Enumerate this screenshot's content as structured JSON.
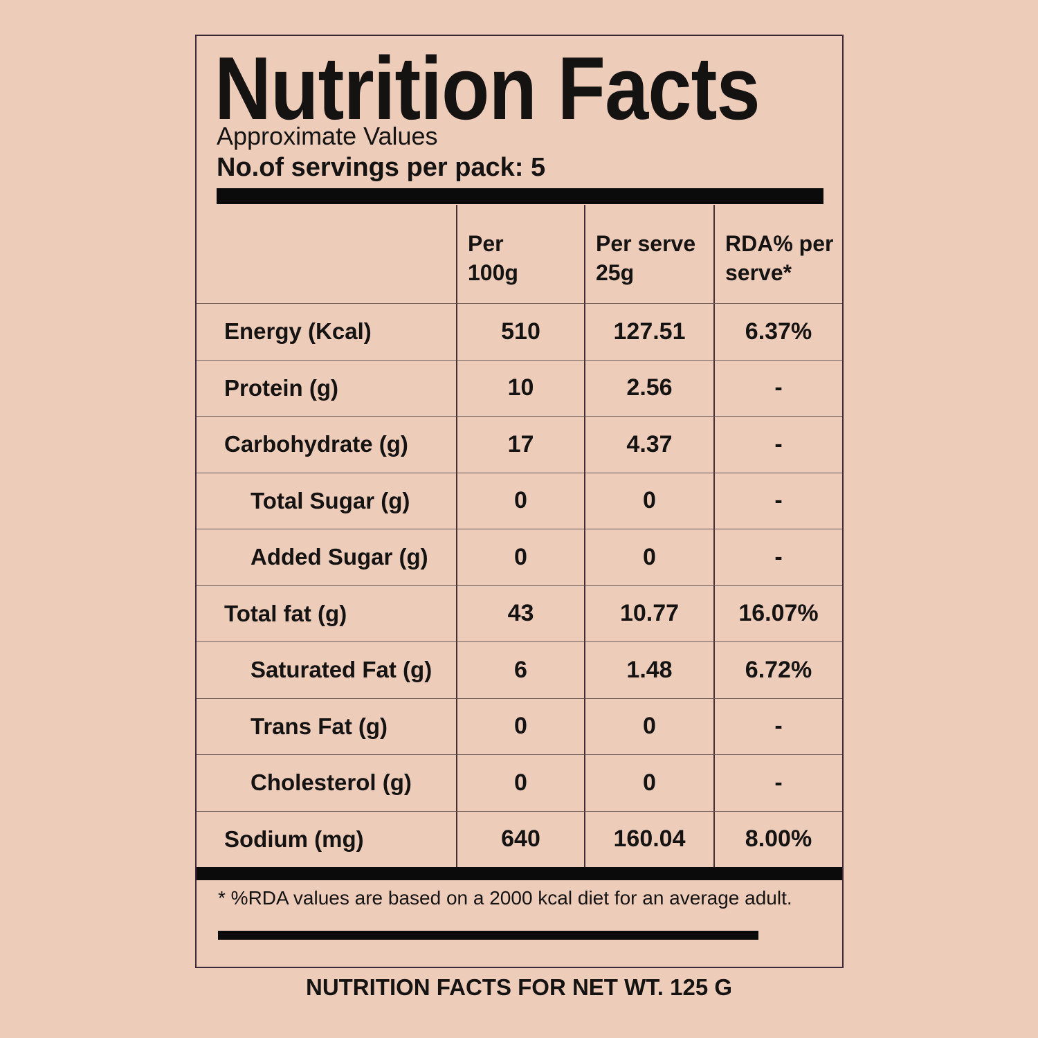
{
  "page": {
    "background_color": "#edccba",
    "text_color": "#151212",
    "bar_color": "#0c0b0b",
    "box_border_color": "#3c2838",
    "grid_vertical_line_color": "#463038",
    "grid_horizontal_line_color": "#6e5c59"
  },
  "label": {
    "title": "Nutrition Facts",
    "subtitle": "Approximate Values",
    "servings": "No.of servings per pack: 5",
    "footnote": "* %RDA values are based on a 2000 kcal diet for an average adult.",
    "caption": "NUTRITION FACTS FOR NET WT. 125 G"
  },
  "table": {
    "columns": [
      {
        "line1": "Per",
        "line2": "100g"
      },
      {
        "line1": "Per serve",
        "line2": "25g"
      },
      {
        "line1": "RDA% per",
        "line2": "serve*"
      }
    ],
    "rows": [
      {
        "name": "Energy (Kcal)",
        "indent": false,
        "per_100g": "510",
        "per_serve": "127.51",
        "rda": "6.37%"
      },
      {
        "name": "Protein (g)",
        "indent": false,
        "per_100g": "10",
        "per_serve": "2.56",
        "rda": "-"
      },
      {
        "name": "Carbohydrate (g)",
        "indent": false,
        "per_100g": "17",
        "per_serve": "4.37",
        "rda": "-"
      },
      {
        "name": "Total Sugar (g)",
        "indent": true,
        "per_100g": "0",
        "per_serve": "0",
        "rda": "-"
      },
      {
        "name": "Added Sugar (g)",
        "indent": true,
        "per_100g": "0",
        "per_serve": "0",
        "rda": "-"
      },
      {
        "name": "Total fat (g)",
        "indent": false,
        "per_100g": "43",
        "per_serve": "10.77",
        "rda": "16.07%"
      },
      {
        "name": "Saturated Fat (g)",
        "indent": true,
        "per_100g": "6",
        "per_serve": "1.48",
        "rda": "6.72%"
      },
      {
        "name": "Trans Fat (g)",
        "indent": true,
        "per_100g": "0",
        "per_serve": "0",
        "rda": "-"
      },
      {
        "name": "Cholesterol (g)",
        "indent": true,
        "per_100g": "0",
        "per_serve": "0",
        "rda": "-"
      },
      {
        "name": "Sodium (mg)",
        "indent": false,
        "per_100g": "640",
        "per_serve": "160.04",
        "rda": "8.00%"
      }
    ]
  }
}
